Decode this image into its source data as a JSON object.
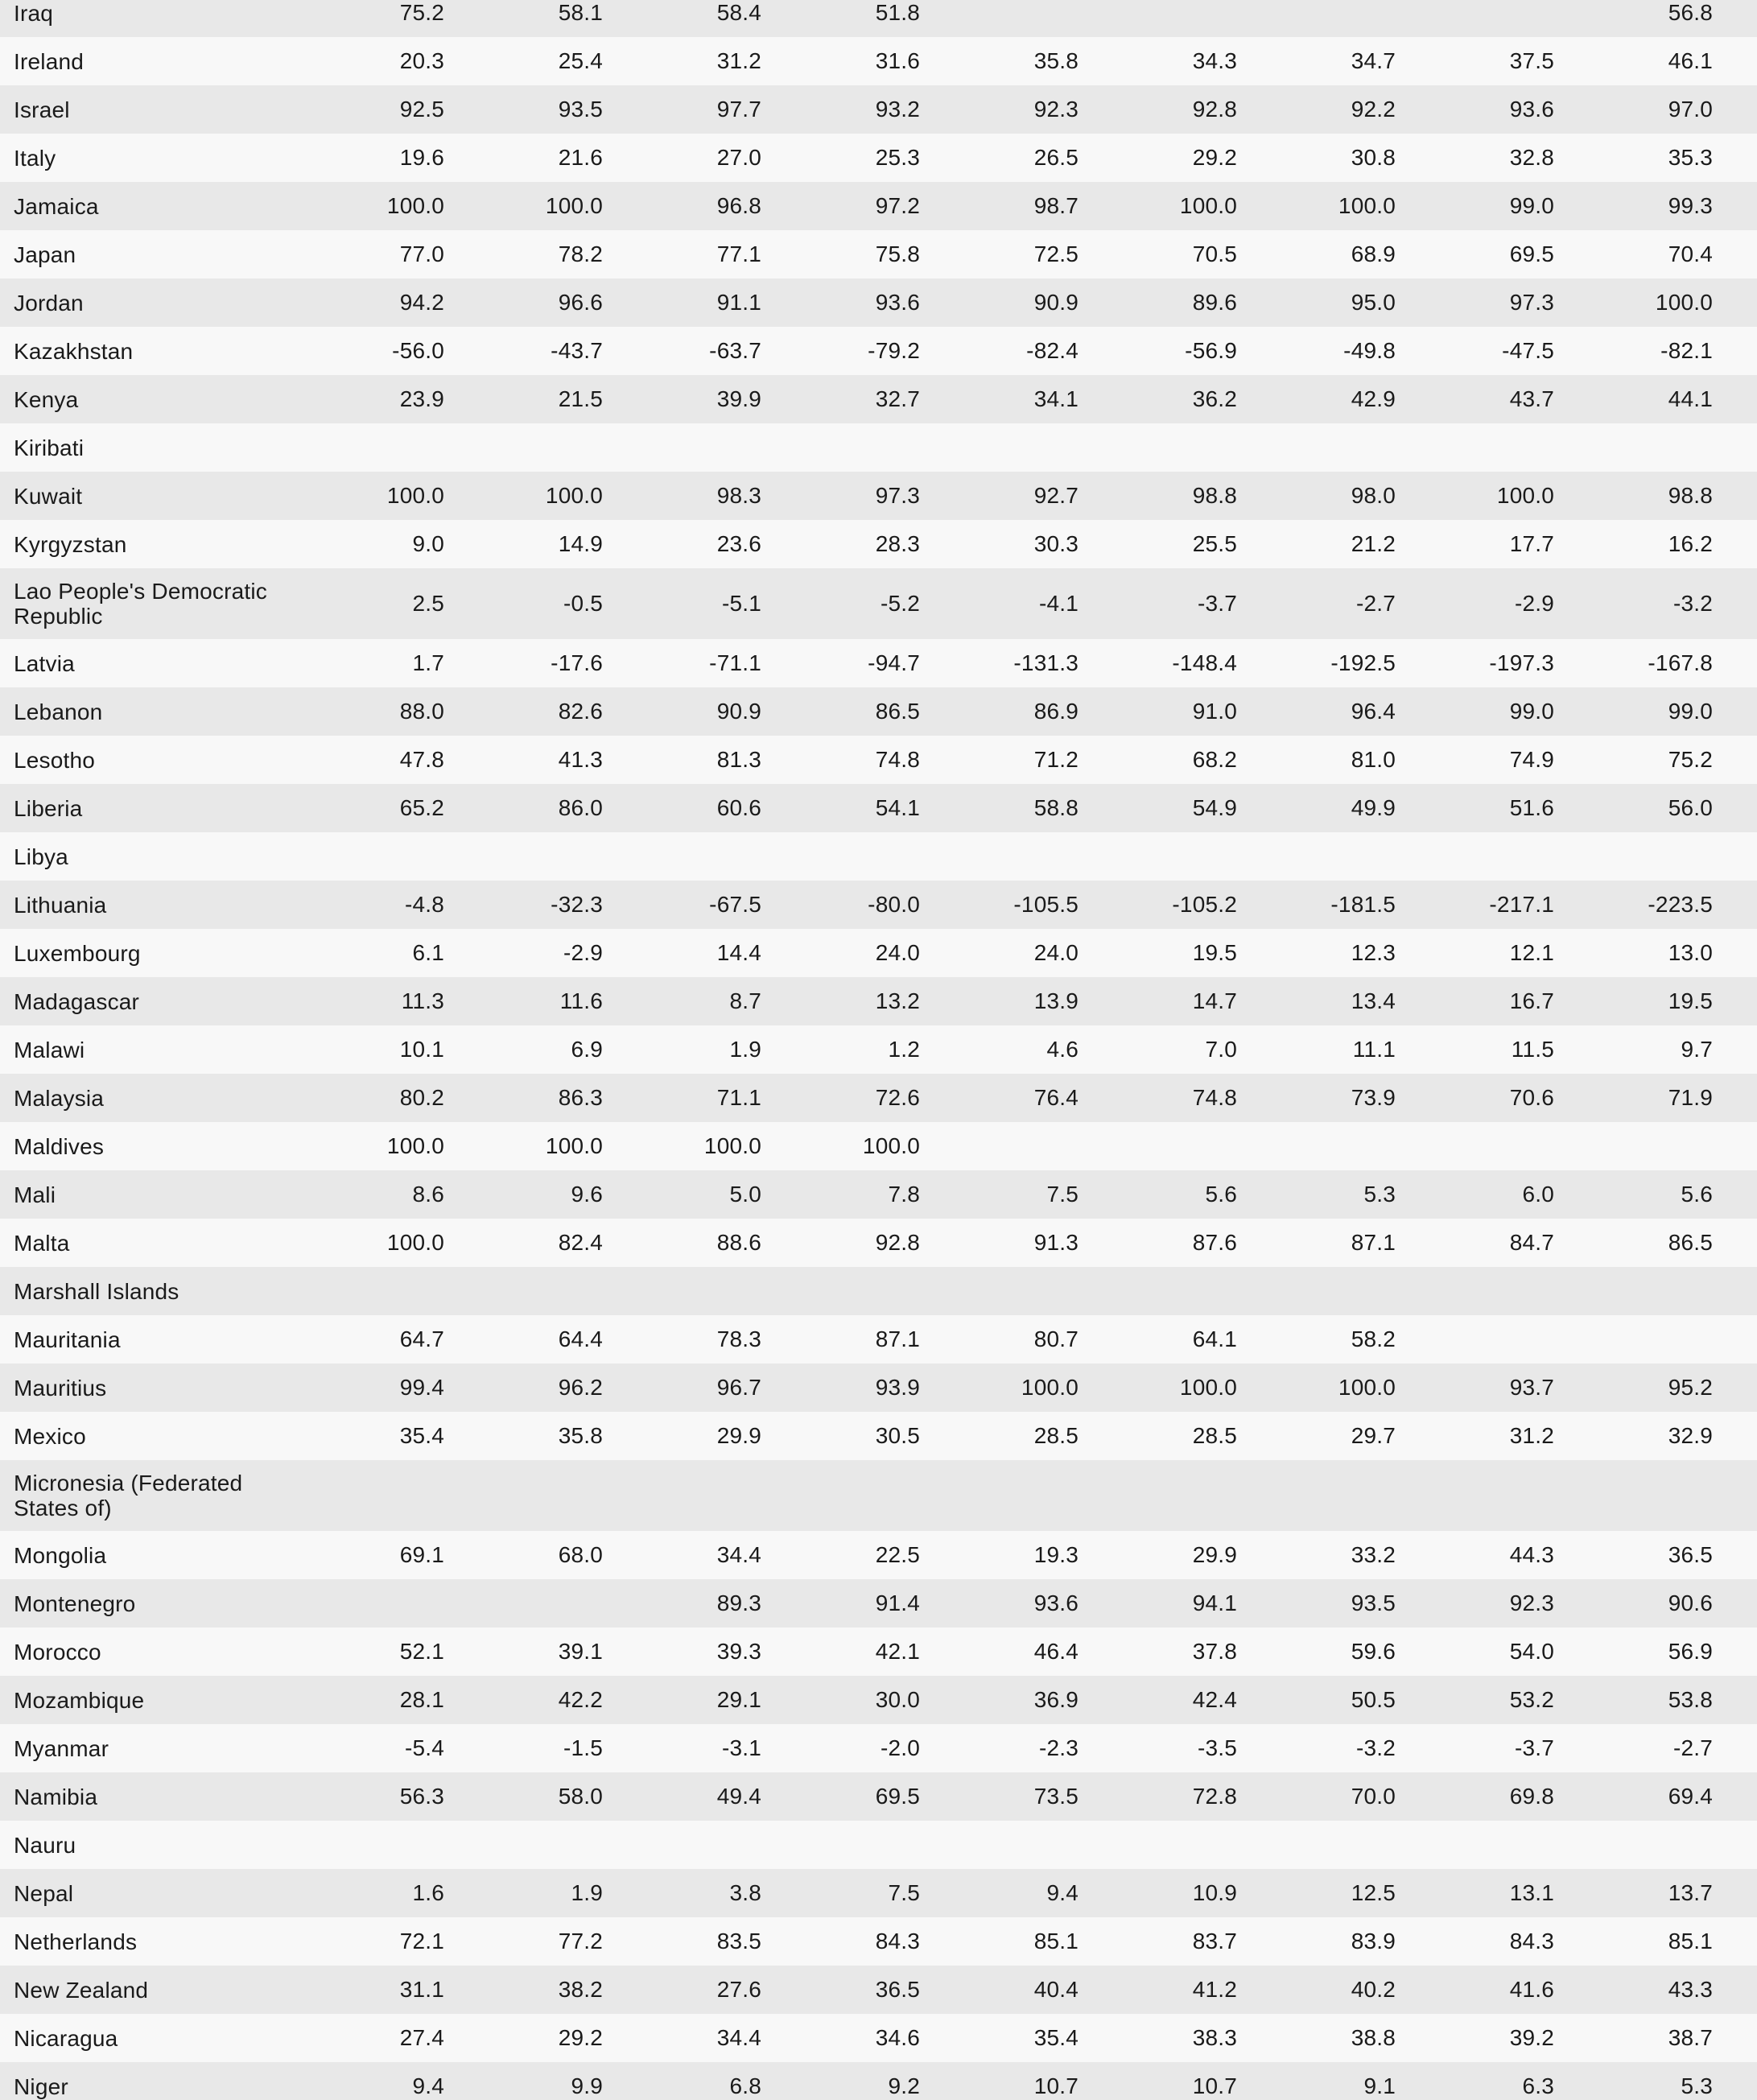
{
  "colors": {
    "row_stripe": "#e8e8e8",
    "row_plain": "#f8f8f8",
    "text": "#1a1a1a"
  },
  "table": {
    "num_value_columns": 9,
    "rows": [
      {
        "country": "Iraq",
        "values": [
          "75.2",
          "58.1",
          "58.4",
          "51.8",
          "",
          "",
          "",
          "",
          "56.8"
        ]
      },
      {
        "country": "Ireland",
        "values": [
          "20.3",
          "25.4",
          "31.2",
          "31.6",
          "35.8",
          "34.3",
          "34.7",
          "37.5",
          "46.1"
        ]
      },
      {
        "country": "Israel",
        "values": [
          "92.5",
          "93.5",
          "97.7",
          "93.2",
          "92.3",
          "92.8",
          "92.2",
          "93.6",
          "97.0"
        ]
      },
      {
        "country": "Italy",
        "values": [
          "19.6",
          "21.6",
          "27.0",
          "25.3",
          "26.5",
          "29.2",
          "30.8",
          "32.8",
          "35.3"
        ]
      },
      {
        "country": "Jamaica",
        "values": [
          "100.0",
          "100.0",
          "96.8",
          "97.2",
          "98.7",
          "100.0",
          "100.0",
          "99.0",
          "99.3"
        ]
      },
      {
        "country": "Japan",
        "values": [
          "77.0",
          "78.2",
          "77.1",
          "75.8",
          "72.5",
          "70.5",
          "68.9",
          "69.5",
          "70.4"
        ]
      },
      {
        "country": "Jordan",
        "values": [
          "94.2",
          "96.6",
          "91.1",
          "93.6",
          "90.9",
          "89.6",
          "95.0",
          "97.3",
          "100.0"
        ]
      },
      {
        "country": "Kazakhstan",
        "values": [
          "-56.0",
          "-43.7",
          "-63.7",
          "-79.2",
          "-82.4",
          "-56.9",
          "-49.8",
          "-47.5",
          "-82.1"
        ]
      },
      {
        "country": "Kenya",
        "values": [
          "23.9",
          "21.5",
          "39.9",
          "32.7",
          "34.1",
          "36.2",
          "42.9",
          "43.7",
          "44.1"
        ]
      },
      {
        "country": "Kiribati",
        "values": [
          "",
          "",
          "",
          "",
          "",
          "",
          "",
          "",
          ""
        ]
      },
      {
        "country": "Kuwait",
        "values": [
          "100.0",
          "100.0",
          "98.3",
          "97.3",
          "92.7",
          "98.8",
          "98.0",
          "100.0",
          "98.8"
        ]
      },
      {
        "country": "Kyrgyzstan",
        "values": [
          "9.0",
          "14.9",
          "23.6",
          "28.3",
          "30.3",
          "25.5",
          "21.2",
          "17.7",
          "16.2"
        ]
      },
      {
        "country": "Lao People's Democratic Republic",
        "values": [
          "2.5",
          "-0.5",
          "-5.1",
          "-5.2",
          "-4.1",
          "-3.7",
          "-2.7",
          "-2.9",
          "-3.2"
        ]
      },
      {
        "country": "Latvia",
        "values": [
          "1.7",
          "-17.6",
          "-71.1",
          "-94.7",
          "-131.3",
          "-148.4",
          "-192.5",
          "-197.3",
          "-167.8"
        ]
      },
      {
        "country": "Lebanon",
        "values": [
          "88.0",
          "82.6",
          "90.9",
          "86.5",
          "86.9",
          "91.0",
          "96.4",
          "99.0",
          "99.0"
        ]
      },
      {
        "country": "Lesotho",
        "values": [
          "47.8",
          "41.3",
          "81.3",
          "74.8",
          "71.2",
          "68.2",
          "81.0",
          "74.9",
          "75.2"
        ]
      },
      {
        "country": "Liberia",
        "values": [
          "65.2",
          "86.0",
          "60.6",
          "54.1",
          "58.8",
          "54.9",
          "49.9",
          "51.6",
          "56.0"
        ]
      },
      {
        "country": "Libya",
        "values": [
          "",
          "",
          "",
          "",
          "",
          "",
          "",
          "",
          ""
        ]
      },
      {
        "country": "Lithuania",
        "values": [
          "-4.8",
          "-32.3",
          "-67.5",
          "-80.0",
          "-105.5",
          "-105.2",
          "-181.5",
          "-217.1",
          "-223.5"
        ]
      },
      {
        "country": "Luxembourg",
        "values": [
          "6.1",
          "-2.9",
          "14.4",
          "24.0",
          "24.0",
          "19.5",
          "12.3",
          "12.1",
          "13.0"
        ]
      },
      {
        "country": "Madagascar",
        "values": [
          "11.3",
          "11.6",
          "8.7",
          "13.2",
          "13.9",
          "14.7",
          "13.4",
          "16.7",
          "19.5"
        ]
      },
      {
        "country": "Malawi",
        "values": [
          "10.1",
          "6.9",
          "1.9",
          "1.2",
          "4.6",
          "7.0",
          "11.1",
          "11.5",
          "9.7"
        ]
      },
      {
        "country": "Malaysia",
        "values": [
          "80.2",
          "86.3",
          "71.1",
          "72.6",
          "76.4",
          "74.8",
          "73.9",
          "70.6",
          "71.9"
        ]
      },
      {
        "country": "Maldives",
        "values": [
          "100.0",
          "100.0",
          "100.0",
          "100.0",
          "",
          "",
          "",
          "",
          ""
        ]
      },
      {
        "country": "Mali",
        "values": [
          "8.6",
          "9.6",
          "5.0",
          "7.8",
          "7.5",
          "5.6",
          "5.3",
          "6.0",
          "5.6"
        ]
      },
      {
        "country": "Malta",
        "values": [
          "100.0",
          "82.4",
          "88.6",
          "92.8",
          "91.3",
          "87.6",
          "87.1",
          "84.7",
          "86.5"
        ]
      },
      {
        "country": "Marshall Islands",
        "values": [
          "",
          "",
          "",
          "",
          "",
          "",
          "",
          "",
          ""
        ]
      },
      {
        "country": "Mauritania",
        "values": [
          "64.7",
          "64.4",
          "78.3",
          "87.1",
          "80.7",
          "64.1",
          "58.2",
          "",
          ""
        ]
      },
      {
        "country": "Mauritius",
        "values": [
          "99.4",
          "96.2",
          "96.7",
          "93.9",
          "100.0",
          "100.0",
          "100.0",
          "93.7",
          "95.2"
        ]
      },
      {
        "country": "Mexico",
        "values": [
          "35.4",
          "35.8",
          "29.9",
          "30.5",
          "28.5",
          "28.5",
          "29.7",
          "31.2",
          "32.9"
        ]
      },
      {
        "country": "Micronesia (Federated States of)",
        "values": [
          "",
          "",
          "",
          "",
          "",
          "",
          "",
          "",
          ""
        ]
      },
      {
        "country": "Mongolia",
        "values": [
          "69.1",
          "68.0",
          "34.4",
          "22.5",
          "19.3",
          "29.9",
          "33.2",
          "44.3",
          "36.5"
        ]
      },
      {
        "country": "Montenegro",
        "values": [
          "",
          "",
          "89.3",
          "91.4",
          "93.6",
          "94.1",
          "93.5",
          "92.3",
          "90.6"
        ]
      },
      {
        "country": "Morocco",
        "values": [
          "52.1",
          "39.1",
          "39.3",
          "42.1",
          "46.4",
          "37.8",
          "59.6",
          "54.0",
          "56.9"
        ]
      },
      {
        "country": "Mozambique",
        "values": [
          "28.1",
          "42.2",
          "29.1",
          "30.0",
          "36.9",
          "42.4",
          "50.5",
          "53.2",
          "53.8"
        ]
      },
      {
        "country": "Myanmar",
        "values": [
          "-5.4",
          "-1.5",
          "-3.1",
          "-2.0",
          "-2.3",
          "-3.5",
          "-3.2",
          "-3.7",
          "-2.7"
        ]
      },
      {
        "country": "Namibia",
        "values": [
          "56.3",
          "58.0",
          "49.4",
          "69.5",
          "73.5",
          "72.8",
          "70.0",
          "69.8",
          "69.4"
        ]
      },
      {
        "country": "Nauru",
        "values": [
          "",
          "",
          "",
          "",
          "",
          "",
          "",
          "",
          ""
        ]
      },
      {
        "country": "Nepal",
        "values": [
          "1.6",
          "1.9",
          "3.8",
          "7.5",
          "9.4",
          "10.9",
          "12.5",
          "13.1",
          "13.7"
        ]
      },
      {
        "country": "Netherlands",
        "values": [
          "72.1",
          "77.2",
          "83.5",
          "84.3",
          "85.1",
          "83.7",
          "83.9",
          "84.3",
          "85.1"
        ]
      },
      {
        "country": "New Zealand",
        "values": [
          "31.1",
          "38.2",
          "27.6",
          "36.5",
          "40.4",
          "41.2",
          "40.2",
          "41.6",
          "43.3"
        ]
      },
      {
        "country": "Nicaragua",
        "values": [
          "27.4",
          "29.2",
          "34.4",
          "34.6",
          "35.4",
          "38.3",
          "38.8",
          "39.2",
          "38.7"
        ]
      },
      {
        "country": "Niger",
        "values": [
          "9.4",
          "9.9",
          "6.8",
          "9.2",
          "10.7",
          "10.7",
          "9.1",
          "6.3",
          "5.3"
        ]
      }
    ]
  }
}
